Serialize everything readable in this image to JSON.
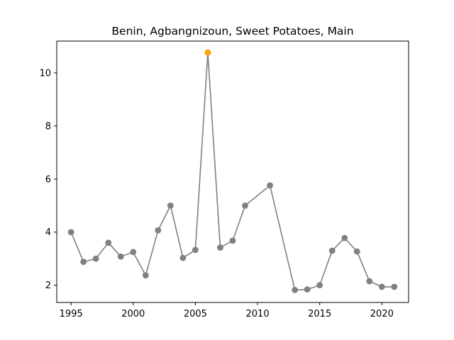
{
  "chart_data": {
    "type": "line",
    "title": "Benin, Agbangnizoun, Sweet Potatoes, Main",
    "xlabel": "",
    "ylabel": "",
    "xlim": [
      1993.85,
      2022.15
    ],
    "ylim": [
      1.35,
      11.2
    ],
    "x_ticks": [
      1995,
      2000,
      2005,
      2010,
      2015,
      2020
    ],
    "y_ticks": [
      2,
      4,
      6,
      8,
      10
    ],
    "grid": false,
    "series": [
      {
        "color": "#808080",
        "points": [
          {
            "x": 1995,
            "y": 4.0
          },
          {
            "x": 1996,
            "y": 2.88
          },
          {
            "x": 1997,
            "y": 3.0
          },
          {
            "x": 1998,
            "y": 3.6
          },
          {
            "x": 1999,
            "y": 3.08
          },
          {
            "x": 2000,
            "y": 3.25
          },
          {
            "x": 2001,
            "y": 2.37
          },
          {
            "x": 2002,
            "y": 4.07
          },
          {
            "x": 2003,
            "y": 5.0
          },
          {
            "x": 2004,
            "y": 3.03
          },
          {
            "x": 2005,
            "y": 3.33
          },
          {
            "x": 2006,
            "y": 10.77
          },
          {
            "x": 2007,
            "y": 3.42
          },
          {
            "x": 2008,
            "y": 3.68
          },
          {
            "x": 2009,
            "y": 5.0
          },
          {
            "x": 2011,
            "y": 5.76
          },
          {
            "x": 2013,
            "y": 1.82
          },
          {
            "x": 2014,
            "y": 1.84
          },
          {
            "x": 2015,
            "y": 2.0
          },
          {
            "x": 2016,
            "y": 3.3
          },
          {
            "x": 2017,
            "y": 3.78
          },
          {
            "x": 2018,
            "y": 3.27
          },
          {
            "x": 2019,
            "y": 2.15
          },
          {
            "x": 2020,
            "y": 1.94
          },
          {
            "x": 2021,
            "y": 1.94
          }
        ]
      }
    ],
    "highlight": {
      "x": 2006,
      "y": 10.77,
      "color": "#ffa500"
    },
    "colors": {
      "line": "#808080",
      "marker": "#808080",
      "highlight": "#ffa500",
      "axis": "#000000"
    }
  }
}
